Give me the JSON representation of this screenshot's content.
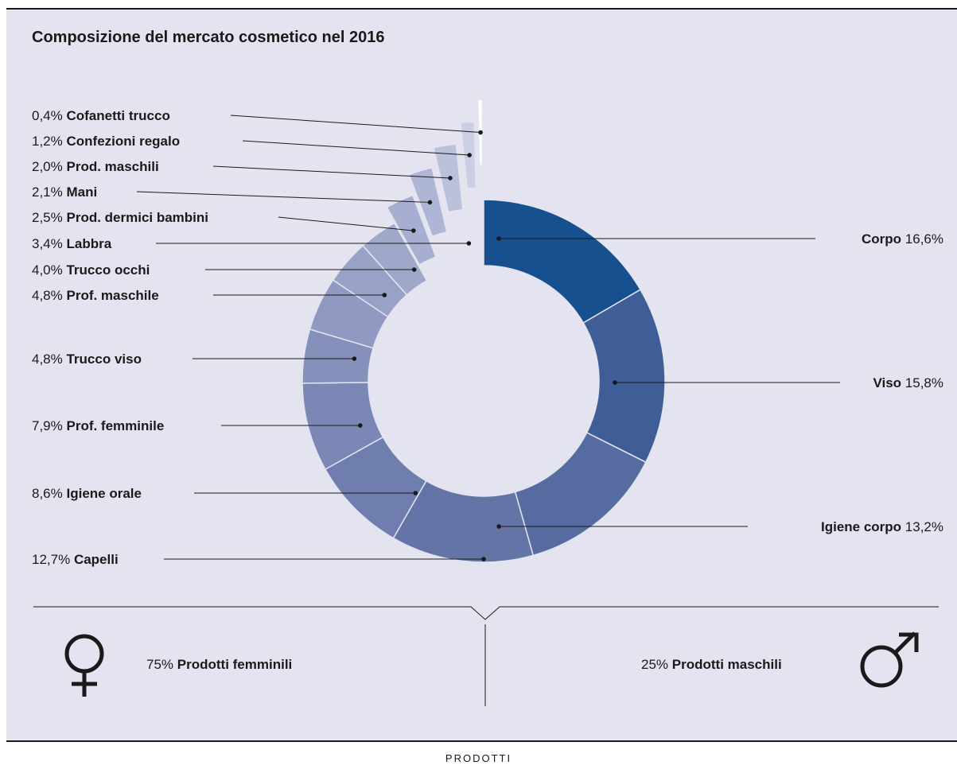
{
  "title": "Composizione del mercato cosmetico nel 2016",
  "footer": "PRODOTTI",
  "colors": {
    "panel": "#e3e4ef",
    "darkest": "#15508f",
    "lightest": "#ffffff",
    "line": "#1a1a1a"
  },
  "chart_data": {
    "type": "donut",
    "title": "Composizione del mercato cosmetico nel 2016",
    "unit": "%",
    "slices": [
      {
        "label": "Corpo",
        "value": 16.6,
        "display": "16,6%",
        "color": "#16508f"
      },
      {
        "label": "Viso",
        "value": 15.8,
        "display": "15,8%",
        "color": "#3f5e98"
      },
      {
        "label": "Igiene corpo",
        "value": 13.2,
        "display": "13,2%",
        "color": "#566ca0"
      },
      {
        "label": "Capelli",
        "value": 12.7,
        "display": "12,7%",
        "color": "#6474a7"
      },
      {
        "label": "Igiene orale",
        "value": 8.6,
        "display": "8,6%",
        "color": "#6f7daf"
      },
      {
        "label": "Prof. femminile",
        "value": 7.9,
        "display": "7,9%",
        "color": "#7b87b5"
      },
      {
        "label": "Trucco viso",
        "value": 4.8,
        "display": "4,8%",
        "color": "#8590bb"
      },
      {
        "label": "Prof. maschile",
        "value": 4.8,
        "display": "4,8%",
        "color": "#8f99c1"
      },
      {
        "label": "Trucco occhi",
        "value": 4.0,
        "display": "4,0%",
        "color": "#98a1c6"
      },
      {
        "label": "Labbra",
        "value": 3.4,
        "display": "3,4%",
        "color": "#a0a8ca"
      },
      {
        "label": "Prod. dermici bambini",
        "value": 2.5,
        "display": "2,5%",
        "color": "#a7aed0"
      },
      {
        "label": "Mani",
        "value": 2.1,
        "display": "2,1%",
        "color": "#afb5d4"
      },
      {
        "label": "Prod. maschili",
        "value": 2.0,
        "display": "2,0%",
        "color": "#bbc0db"
      },
      {
        "label": "Confezioni regalo",
        "value": 1.2,
        "display": "1,2%",
        "color": "#cbcfe4"
      },
      {
        "label": "Cofanetti trucco",
        "value": 0.4,
        "display": "0,4%",
        "color": "#ffffff"
      }
    ]
  },
  "summary": {
    "female": {
      "percent": "75%",
      "label": "Prodotti femminili",
      "icon": "female-symbol-icon"
    },
    "male": {
      "percent": "25%",
      "label": "Prodotti maschili",
      "icon": "male-symbol-icon"
    }
  }
}
